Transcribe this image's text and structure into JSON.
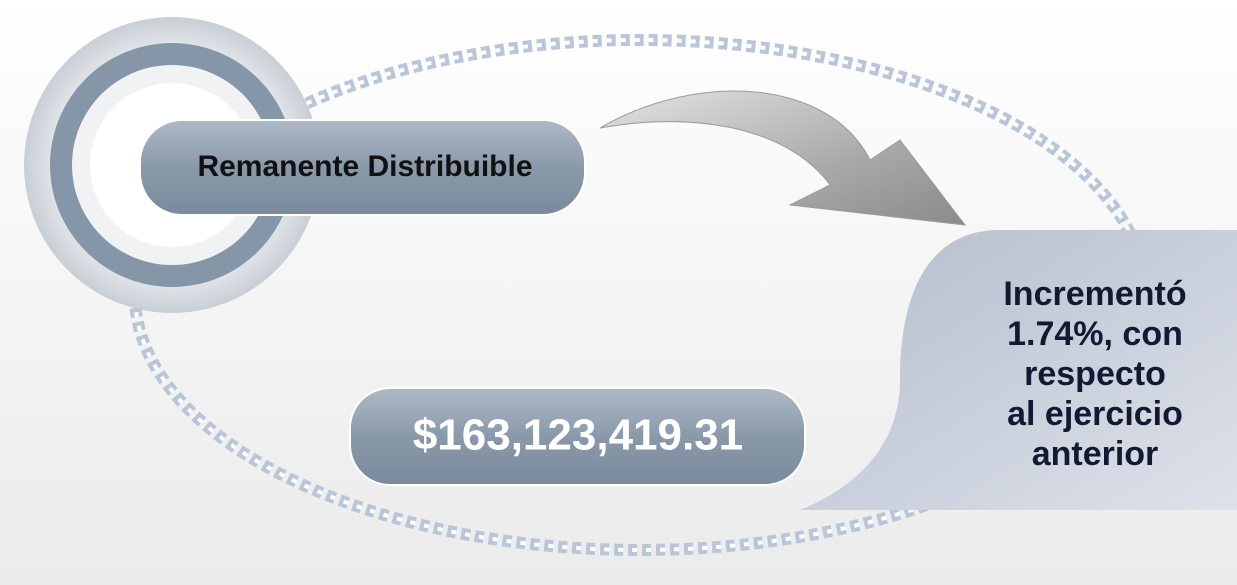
{
  "label": "Remanente Distribuible",
  "amount": "$163,123,419.31",
  "note": [
    "Incrementó",
    "1.74%, con",
    "respecto",
    "al ejercicio",
    "anterior"
  ]
}
